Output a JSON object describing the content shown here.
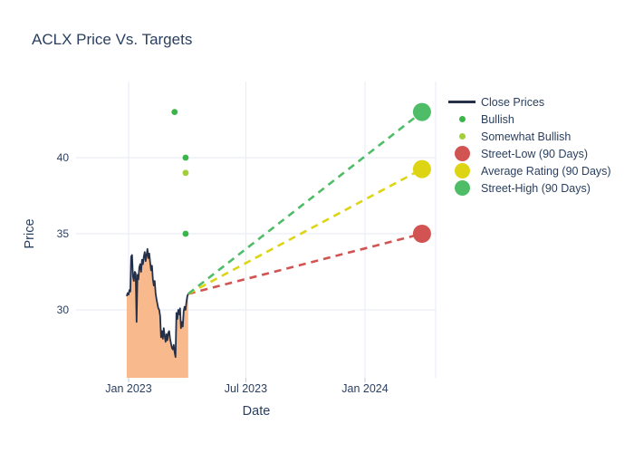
{
  "chart_data": {
    "type": "line",
    "title": "ACLX Price Vs. Targets",
    "xlabel": "Date",
    "ylabel": "Price",
    "grid": true,
    "legend_position": "right",
    "ylim": [
      25.5,
      45
    ],
    "y_ticks": [
      30,
      35,
      40
    ],
    "x_ticks": [
      {
        "label": "Jan 2023",
        "date": "2023-01-01"
      },
      {
        "label": "Jul 2023",
        "date": "2023-07-01"
      },
      {
        "label": "Jan 2024",
        "date": "2024-01-01"
      }
    ],
    "colors": {
      "background": "#ffffff",
      "text": "#2a3f5f",
      "grid": "#e9eef6",
      "tick": "#c2cbd8"
    },
    "series": [
      {
        "name": "Close Prices",
        "type": "line",
        "color": "#243049",
        "fill_color": "#f8ba8c",
        "start_date": "2022-12-29",
        "end_date": "2023-04-03",
        "prices": [
          30.9,
          31.1,
          31.0,
          31.3,
          31.2,
          33.5,
          33.6,
          32.2,
          31.9,
          32.5,
          32.4,
          29.2,
          32.3,
          32.0,
          32.8,
          33.0,
          32.5,
          33.3,
          33.0,
          33.5,
          33.8,
          33.2,
          33.6,
          34.0,
          33.4,
          33.7,
          33.1,
          32.6,
          32.9,
          32.0,
          31.6,
          31.9,
          31.1,
          30.7,
          30.4,
          30.1,
          30.0,
          29.6,
          28.2,
          28.6,
          28.1,
          28.8,
          28.3,
          27.9,
          28.4,
          28.0,
          28.5,
          28.6,
          28.1,
          27.8,
          27.5,
          27.4,
          27.7,
          27.2,
          26.9,
          29.8,
          29.4,
          30.0,
          29.7,
          30.1,
          28.8,
          29.2,
          28.9,
          29.9,
          30.2,
          30.0,
          30.5,
          30.9,
          31.05
        ]
      },
      {
        "name": "Bullish",
        "type": "scatter",
        "color": "#3bb54a",
        "points": [
          {
            "date": "2023-03-13",
            "price": 43
          },
          {
            "date": "2023-03-30",
            "price": 40
          },
          {
            "date": "2023-03-30",
            "price": 35
          }
        ]
      },
      {
        "name": "Somewhat Bullish",
        "type": "scatter",
        "color": "#a2ce3a",
        "points": [
          {
            "date": "2023-03-30",
            "price": 39
          }
        ]
      },
      {
        "name": "Street-Low (90 Days)",
        "type": "target",
        "color": "#d25452",
        "date": "2024-03-29",
        "price": 35,
        "dash_from": {
          "date": "2023-04-03",
          "price": 31.05
        }
      },
      {
        "name": "Average Rating (90 Days)",
        "type": "target",
        "color": "#ddd414",
        "date": "2024-03-29",
        "price": 39.25,
        "dash_from": {
          "date": "2023-04-03",
          "price": 31.05
        }
      },
      {
        "name": "Street-High (90 Days)",
        "type": "target",
        "color": "#4fbd68",
        "date": "2024-03-29",
        "price": 43,
        "dash_from": {
          "date": "2023-04-03",
          "price": 31.05
        }
      }
    ]
  }
}
